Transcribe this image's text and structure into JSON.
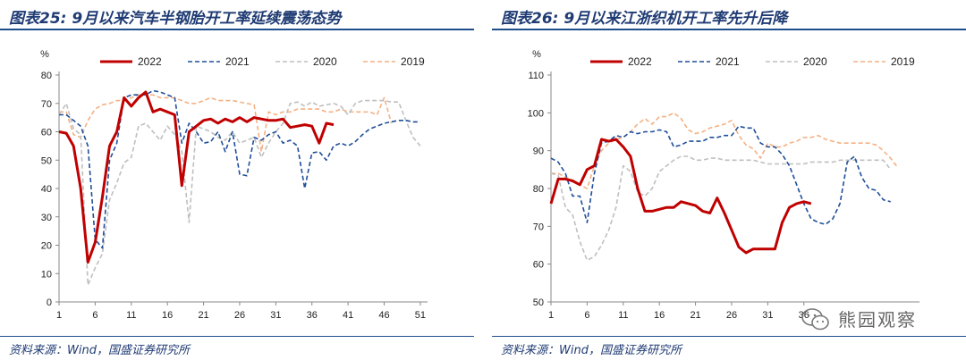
{
  "colors": {
    "s2022": "#c00000",
    "s2021": "#1f4e9a",
    "s2020": "#bfbfbf",
    "s2019": "#f4b183",
    "axis": "#888888",
    "title": "#1f3b73"
  },
  "watermark": {
    "icon": "wechat-icon",
    "text": "熊园观察"
  },
  "chart_data": [
    {
      "type": "line",
      "title": "图表25: 9月以来汽车半钢胎开工率延续震荡态势",
      "source": "资料来源：Wind，国盛证券研究所",
      "ylabel": "%",
      "ylim": [
        0,
        80
      ],
      "yticks": [
        "0",
        "10",
        "20",
        "30",
        "40",
        "50",
        "60",
        "70",
        "80"
      ],
      "xlim": [
        1,
        52
      ],
      "xticks": [
        "1",
        "6",
        "11",
        "16",
        "21",
        "26",
        "31",
        "36",
        "41",
        "46",
        "51"
      ],
      "legend": [
        "2022",
        "2021",
        "2020",
        "2019"
      ],
      "series": [
        {
          "name": "2022",
          "values": [
            60,
            59.5,
            55,
            40,
            14,
            21,
            37,
            55,
            60,
            72,
            69,
            72,
            74,
            67,
            68,
            67,
            66,
            41,
            60,
            62,
            64,
            64.5,
            63,
            64.5,
            63.5,
            65,
            63.5,
            65,
            64.5,
            64,
            64,
            64.5,
            61.5,
            62,
            62.5,
            62,
            56,
            63,
            62.5
          ]
        },
        {
          "name": "2021",
          "values": [
            66,
            66,
            64,
            62,
            55,
            22,
            19,
            50,
            56,
            72,
            73,
            73,
            73,
            74.5,
            74,
            73,
            72,
            56,
            63,
            60,
            56,
            56.5,
            60,
            53,
            60,
            45,
            44.5,
            58,
            57,
            59,
            60,
            56,
            57,
            55,
            40,
            52.5,
            53,
            50,
            55,
            56,
            55,
            56.5,
            59,
            61,
            62,
            63,
            63.5,
            64,
            64,
            63.5,
            63.5
          ]
        },
        {
          "name": "2020",
          "values": [
            66,
            70,
            61,
            59,
            6,
            12,
            17,
            36,
            42,
            49,
            51,
            62,
            63,
            60,
            57,
            62,
            59,
            53,
            28,
            62,
            61,
            60,
            58,
            57,
            60,
            56,
            57,
            58,
            51,
            56,
            60,
            63,
            70,
            70.5,
            69,
            70.5,
            69,
            69.5,
            70,
            69,
            66,
            70,
            71,
            71,
            71,
            71,
            70.5,
            70.5,
            64,
            58,
            55
          ]
        },
        {
          "name": "2019",
          "values": [
            67,
            67,
            59,
            58,
            64,
            68,
            69.5,
            70,
            71,
            71,
            72,
            73,
            73,
            73,
            72,
            72,
            72,
            71,
            70,
            70,
            71,
            72,
            71,
            71,
            71,
            70.5,
            70,
            69.5,
            53,
            67,
            66,
            67,
            67,
            68,
            68,
            68,
            68,
            67,
            67,
            68,
            67,
            67,
            67,
            67,
            66,
            72,
            63
          ]
        }
      ]
    },
    {
      "type": "line",
      "title": "图表26: 9月以来江浙织机开工率先升后降",
      "source": "资料来源：Wind，国盛证券研究所",
      "ylabel": "%",
      "ylim": [
        50,
        110
      ],
      "yticks": [
        "50",
        "60",
        "70",
        "80",
        "90",
        "100",
        "110"
      ],
      "xlim": [
        1,
        52
      ],
      "xticks": [
        "1",
        "6",
        "11",
        "16",
        "21",
        "26",
        "31",
        "36"
      ],
      "legend": [
        "2022",
        "2021",
        "2020",
        "2019"
      ],
      "series": [
        {
          "name": "2022",
          "values": [
            76,
            82.5,
            82.5,
            82,
            81,
            85,
            86,
            93,
            92.5,
            93,
            91,
            88.5,
            80,
            74,
            74,
            74.5,
            75,
            75,
            76.5,
            76,
            75.5,
            74,
            73.5,
            77.5,
            73.5,
            69,
            64.5,
            63,
            64,
            64,
            64,
            64,
            71,
            75,
            76,
            76.5,
            76
          ]
        },
        {
          "name": "2021",
          "values": [
            88,
            87,
            84,
            78,
            78,
            71,
            84,
            92,
            92.5,
            94,
            93.5,
            95,
            94.5,
            95,
            95,
            95.5,
            95,
            91,
            91.5,
            92.5,
            92.5,
            92.5,
            93.5,
            93.5,
            94,
            94,
            96.5,
            96,
            96,
            92,
            91,
            91,
            89,
            86,
            81,
            76,
            72,
            71,
            70.5,
            72,
            76,
            87,
            88.5,
            83,
            80,
            79.5,
            77,
            76.5
          ]
        },
        {
          "name": "2020",
          "values": [
            84,
            83.5,
            75,
            73,
            66,
            61,
            62,
            65,
            69,
            75,
            86,
            84.5,
            79,
            78,
            80,
            84.5,
            86,
            87.5,
            88.5,
            88.5,
            87.5,
            87.5,
            88,
            88,
            87.5,
            87.5,
            87.5,
            87.5,
            87.5,
            87,
            86.5,
            86.5,
            86.5,
            86.5,
            86.5,
            86.5,
            87,
            87,
            87,
            87,
            87.5,
            87.5,
            87.5,
            87.5,
            87.5,
            87.5,
            87.5,
            85
          ]
        },
        {
          "name": "2019",
          "values": [
            84,
            84,
            83,
            82,
            81,
            80,
            86,
            90,
            92,
            93,
            93.5,
            95,
            97,
            98.5,
            97,
            99,
            99,
            100,
            98.5,
            95.5,
            94.5,
            95,
            96,
            96.5,
            97,
            98,
            94,
            91.5,
            90.5,
            88,
            92,
            91,
            91,
            92,
            92.5,
            93.5,
            93.5,
            94,
            93,
            92.5,
            92,
            92,
            92,
            92,
            92,
            91.5,
            90,
            88,
            85.5
          ]
        }
      ]
    }
  ]
}
